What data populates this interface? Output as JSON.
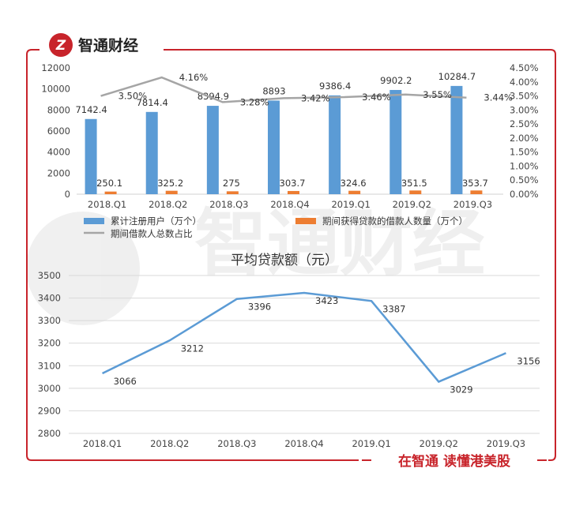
{
  "brand": {
    "name": "智通财经",
    "logo_glyph": "Z",
    "slogan": "在智通 读懂港美股",
    "color": "#c8242b"
  },
  "chart_data": [
    {
      "type": "bar",
      "categories": [
        "2018.Q1",
        "2018.Q2",
        "2018.Q3",
        "2018.Q4",
        "2019.Q1",
        "2019.Q2",
        "2019.Q3"
      ],
      "series": [
        {
          "name": "累计注册用户（万个）",
          "kind": "bar",
          "axis": "left",
          "color": "#5b9bd5",
          "values": [
            7142.4,
            7814.4,
            8394.9,
            8893,
            9386.4,
            9902.2,
            10284.7
          ],
          "labels": [
            "7142.4",
            "7814.4",
            "8394.9",
            "8893",
            "9386.4",
            "9902.2",
            "10284.7"
          ]
        },
        {
          "name": "期间获得贷款的借款人数量（万个）",
          "kind": "bar",
          "axis": "left",
          "color": "#ed7d31",
          "values": [
            250.1,
            325.2,
            275,
            303.7,
            324.6,
            351.5,
            353.7
          ],
          "labels": [
            "250.1",
            "325.2",
            "275",
            "303.7",
            "324.6",
            "351.5",
            "353.7"
          ]
        },
        {
          "name": "期间借款人总数占比",
          "kind": "line",
          "axis": "right",
          "color": "#a5a5a5",
          "values": [
            3.5,
            4.16,
            3.28,
            3.42,
            3.46,
            3.55,
            3.44
          ],
          "labels": [
            "3.50%",
            "4.16%",
            "3.28%",
            "3.42%",
            "3.46%",
            "3.55%",
            "3.44%"
          ]
        }
      ],
      "y_left": {
        "ylim": [
          0,
          12000
        ],
        "ticks": [
          "0",
          "2000",
          "4000",
          "6000",
          "8000",
          "10000",
          "12000"
        ]
      },
      "y_right": {
        "ylim": [
          0,
          4.5
        ],
        "ticks": [
          "0.00%",
          "0.50%",
          "1.00%",
          "1.50%",
          "2.00%",
          "2.50%",
          "3.00%",
          "3.50%",
          "4.00%",
          "4.50%"
        ]
      },
      "legend_position": "bottom",
      "grid": false
    },
    {
      "type": "line",
      "title": "平均贷款额（元）",
      "categories": [
        "2018.Q1",
        "2018.Q2",
        "2018.Q3",
        "2018.Q4",
        "2019.Q1",
        "2019.Q2",
        "2019.Q3"
      ],
      "series": [
        {
          "color": "#5b9bd5",
          "values": [
            3066,
            3212,
            3396,
            3423,
            3387,
            3029,
            3156
          ],
          "labels": [
            "3066",
            "3212",
            "3396",
            "3423",
            "3387",
            "3029",
            "3156"
          ]
        }
      ],
      "ylim": [
        2800,
        3500
      ],
      "ticks": [
        "2800",
        "2900",
        "3000",
        "3100",
        "3200",
        "3300",
        "3400",
        "3500"
      ],
      "grid": true
    }
  ]
}
